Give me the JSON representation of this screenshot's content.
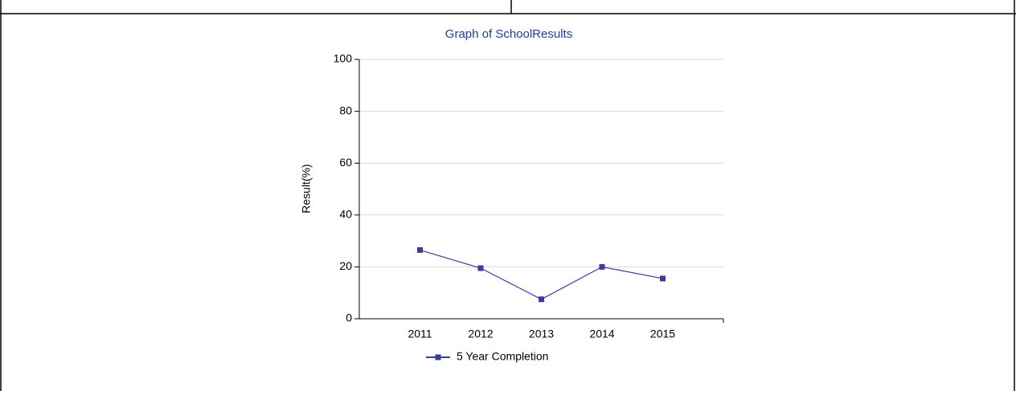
{
  "chart_data": {
    "type": "line",
    "title": "Graph of SchoolResults",
    "y_label": "Result(%)",
    "categories": [
      "2011",
      "2012",
      "2013",
      "2014",
      "2015"
    ],
    "series": [
      {
        "name": "5 Year Completion",
        "color": "#3b3b9c",
        "values": [
          26.5,
          19.5,
          7.5,
          20,
          15.5
        ]
      }
    ],
    "ylim": [
      0,
      100
    ],
    "yticks": [
      0,
      20,
      40,
      60,
      80,
      100
    ],
    "grid": true
  }
}
